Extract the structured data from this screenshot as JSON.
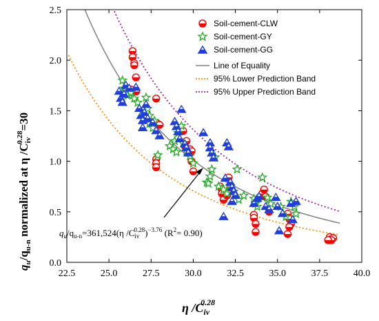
{
  "chart_data": {
    "type": "scatter",
    "xlim": [
      22.5,
      40.0
    ],
    "ylim": [
      0.0,
      2.5
    ],
    "x_ticks": [
      "22.5",
      "25.0",
      "27.5",
      "30.0",
      "32.5",
      "35.0",
      "37.5",
      "40.0"
    ],
    "y_ticks": [
      "0.0",
      "0.5",
      "1.0",
      "1.5",
      "2.0",
      "2.5"
    ],
    "xlabel": {
      "main": "η /C",
      "sub": "iv",
      "sup": "0.28"
    },
    "ylabel": {
      "q": "q",
      "q_sub": "u",
      "mid": "/q",
      "mid_sub": "u-n",
      "text": " normalized at η /C",
      "sub2": "iv",
      "sup2": "0.28",
      "tail": "=30"
    },
    "annotation": {
      "q": "q",
      "q_sub": "u",
      "slash": "/q",
      "sub2": "u-n",
      "eq": "=361,524(η /C",
      "sub3": "iv",
      "sup3": "0.28",
      "close": ")",
      "exp": "−3.76",
      "r2_open": " (R",
      "r2_sup": "2",
      "r2_val": "= 0.90)"
    },
    "legend_position": "top-right",
    "curves": [
      {
        "name": "Line of Equality",
        "color": "#808080",
        "style": "solid",
        "coef": 361524,
        "exp": -3.76
      },
      {
        "name": "95% Lower Prediction Band",
        "color": "#ff8c00",
        "style": "dotted",
        "coef": 253067,
        "exp": -3.76
      },
      {
        "name": "95% Upper Prediction Band",
        "color": "#a020a0",
        "style": "dotted",
        "coef": 469981,
        "exp": -3.76
      }
    ],
    "series": [
      {
        "name": "Soil-cement-CLW",
        "marker": "circle",
        "color": "#ff0000",
        "points": [
          [
            26.4,
            2.09
          ],
          [
            26.4,
            2.03
          ],
          [
            26.5,
            1.97
          ],
          [
            26.5,
            1.95
          ],
          [
            26.6,
            1.83
          ],
          [
            26.3,
            1.71
          ],
          [
            26.6,
            1.69
          ],
          [
            27.8,
            1.62
          ],
          [
            27.9,
            1.37
          ],
          [
            28.0,
            1.36
          ],
          [
            27.8,
            1.02
          ],
          [
            27.8,
            0.98
          ],
          [
            27.8,
            0.94
          ],
          [
            29.4,
            1.3
          ],
          [
            29.5,
            1.15
          ],
          [
            29.6,
            1.2
          ],
          [
            29.8,
            1.12
          ],
          [
            29.9,
            1.1
          ],
          [
            29.9,
            1.0
          ],
          [
            30.0,
            0.9
          ],
          [
            31.6,
            0.75
          ],
          [
            31.7,
            0.72
          ],
          [
            31.7,
            0.68
          ],
          [
            31.8,
            0.62
          ],
          [
            32.0,
            0.66
          ],
          [
            32.1,
            0.84
          ],
          [
            32.2,
            0.74
          ],
          [
            33.6,
            0.47
          ],
          [
            33.6,
            0.44
          ],
          [
            33.7,
            0.38
          ],
          [
            33.7,
            0.3
          ],
          [
            34.1,
            0.68
          ],
          [
            34.2,
            0.72
          ],
          [
            34.3,
            0.65
          ],
          [
            34.5,
            0.5
          ],
          [
            35.6,
            0.48
          ],
          [
            35.7,
            0.43
          ],
          [
            35.8,
            0.38
          ],
          [
            35.7,
            0.35
          ],
          [
            35.6,
            0.28
          ],
          [
            38.1,
            0.25
          ],
          [
            38.2,
            0.23
          ],
          [
            38.3,
            0.24
          ],
          [
            38.2,
            0.22
          ],
          [
            38.0,
            0.22
          ]
        ]
      },
      {
        "name": "Soil-cement-GY",
        "marker": "star",
        "color": "#22aa22",
        "points": [
          [
            25.8,
            1.8
          ],
          [
            25.9,
            1.72
          ],
          [
            26.0,
            1.7
          ],
          [
            26.1,
            1.65
          ],
          [
            26.3,
            1.68
          ],
          [
            26.5,
            1.62
          ],
          [
            26.7,
            1.58
          ],
          [
            27.2,
            1.63
          ],
          [
            27.3,
            1.52
          ],
          [
            27.4,
            1.45
          ],
          [
            27.4,
            1.37
          ],
          [
            27.6,
            1.33
          ],
          [
            27.7,
            1.4
          ],
          [
            27.9,
            1.06
          ],
          [
            28.6,
            1.15
          ],
          [
            28.8,
            1.12
          ],
          [
            28.9,
            1.2
          ],
          [
            29.0,
            1.09
          ],
          [
            29.1,
            1.28
          ],
          [
            29.3,
            1.35
          ],
          [
            29.4,
            1.18
          ],
          [
            29.6,
            1.1
          ],
          [
            29.8,
            1.05
          ],
          [
            30.0,
            0.98
          ],
          [
            30.8,
            0.79
          ],
          [
            30.9,
            0.78
          ],
          [
            31.0,
            0.85
          ],
          [
            31.1,
            0.92
          ],
          [
            31.3,
            1.04
          ],
          [
            31.5,
            0.75
          ],
          [
            31.8,
            0.72
          ],
          [
            32.0,
            0.68
          ],
          [
            32.2,
            0.76
          ],
          [
            32.4,
            0.7
          ],
          [
            32.6,
            0.92
          ],
          [
            32.7,
            0.62
          ],
          [
            33.0,
            0.66
          ],
          [
            33.6,
            0.63
          ],
          [
            33.7,
            0.58
          ],
          [
            33.8,
            0.55
          ],
          [
            34.1,
            0.84
          ],
          [
            34.4,
            0.64
          ],
          [
            34.6,
            0.58
          ],
          [
            35.2,
            0.55
          ],
          [
            35.5,
            0.45
          ],
          [
            35.8,
            0.6
          ],
          [
            36.0,
            0.55
          ],
          [
            36.1,
            0.48
          ]
        ]
      },
      {
        "name": "Soil-cement-GG",
        "marker": "triangle",
        "color": "#1f3fd6",
        "points": [
          [
            25.6,
            1.69
          ],
          [
            25.7,
            1.62
          ],
          [
            25.8,
            1.58
          ],
          [
            25.9,
            1.66
          ],
          [
            26.0,
            1.75
          ],
          [
            26.2,
            1.72
          ],
          [
            26.6,
            1.73
          ],
          [
            26.8,
            1.52
          ],
          [
            26.9,
            1.45
          ],
          [
            27.0,
            1.4
          ],
          [
            27.0,
            1.33
          ],
          [
            27.1,
            1.48
          ],
          [
            27.2,
            1.56
          ],
          [
            27.3,
            1.42
          ],
          [
            27.6,
            1.38
          ],
          [
            27.8,
            1.3
          ],
          [
            28.0,
            1.25
          ],
          [
            28.9,
            1.39
          ],
          [
            29.0,
            1.34
          ],
          [
            29.1,
            1.29
          ],
          [
            29.2,
            1.22
          ],
          [
            29.3,
            1.51
          ],
          [
            29.5,
            1.17
          ],
          [
            29.6,
            1.13
          ],
          [
            29.7,
            1.08
          ],
          [
            30.6,
            1.28
          ],
          [
            31.0,
            1.18
          ],
          [
            31.0,
            1.13
          ],
          [
            31.1,
            1.08
          ],
          [
            31.2,
            1.03
          ],
          [
            31.8,
            0.45
          ],
          [
            31.9,
            0.83
          ],
          [
            32.0,
            1.18
          ],
          [
            32.1,
            1.14
          ],
          [
            32.2,
            0.79
          ],
          [
            32.3,
            0.74
          ],
          [
            32.4,
            0.7
          ],
          [
            32.5,
            0.66
          ],
          [
            32.3,
            0.6
          ],
          [
            33.6,
            0.58
          ],
          [
            33.8,
            0.63
          ],
          [
            33.9,
            0.65
          ],
          [
            34.3,
            0.55
          ],
          [
            34.5,
            0.52
          ],
          [
            34.9,
            0.64
          ],
          [
            35.0,
            0.55
          ],
          [
            35.1,
            0.31
          ],
          [
            35.3,
            0.48
          ],
          [
            35.8,
            0.58
          ],
          [
            35.9,
            0.42
          ],
          [
            36.1,
            0.6
          ]
        ]
      }
    ]
  }
}
